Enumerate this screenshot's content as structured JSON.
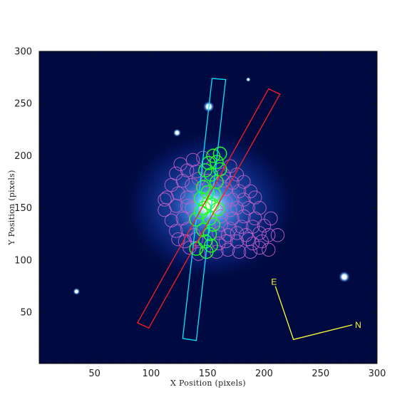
{
  "x_axis": {
    "title": "X Position (pixels)",
    "range": [
      1,
      300
    ],
    "ticks": [
      50,
      100,
      150,
      200,
      250,
      300
    ]
  },
  "y_axis": {
    "title": "Y Position (pixels)",
    "range": [
      1,
      300
    ],
    "ticks": [
      50,
      100,
      150,
      200,
      250,
      300
    ]
  },
  "colors": {
    "background": "#000a40",
    "galaxy_core": "#fffde0",
    "cyan_slit": "#00e8ff",
    "red_slit": "#ff1e1e",
    "green_apertures": "#22ff22",
    "magenta_apertures": "#c060c8",
    "compass": "#ffff33"
  },
  "compass": {
    "east_label": "E",
    "north_label": "N",
    "origin": [
      226,
      24
    ],
    "east_tip": [
      210,
      75
    ],
    "north_tip": [
      278,
      38
    ]
  },
  "slits": {
    "cyan": [
      [
        128,
        25
      ],
      [
        140,
        23
      ],
      [
        166,
        273
      ],
      [
        154,
        274
      ]
    ],
    "red": [
      [
        88,
        40
      ],
      [
        98,
        35
      ],
      [
        214,
        259
      ],
      [
        204,
        264
      ]
    ]
  },
  "stars": [
    {
      "x": 151,
      "y": 247,
      "size": 3.5
    },
    {
      "x": 123,
      "y": 222,
      "size": 2.5
    },
    {
      "x": 271,
      "y": 84,
      "size": 3.5
    },
    {
      "x": 34,
      "y": 70,
      "size": 2.2
    },
    {
      "x": 186,
      "y": 273,
      "size": 1.5
    }
  ],
  "galaxy": {
    "x": 152,
    "y": 152
  },
  "aperture_radius": 5.8,
  "green_apertures": [
    [
      161,
      202
    ],
    [
      155,
      200
    ],
    [
      158,
      194
    ],
    [
      151,
      193
    ],
    [
      148,
      186
    ],
    [
      161,
      187
    ],
    [
      153,
      182
    ],
    [
      158,
      175
    ],
    [
      146,
      170
    ],
    [
      150,
      165
    ],
    [
      156,
      163
    ],
    [
      144,
      159
    ],
    [
      151,
      155
    ],
    [
      154,
      153
    ],
    [
      147,
      150
    ],
    [
      159,
      149
    ],
    [
      144,
      146
    ],
    [
      152,
      140
    ],
    [
      140,
      139
    ],
    [
      155,
      134
    ],
    [
      146,
      129
    ],
    [
      152,
      125
    ],
    [
      148,
      118
    ],
    [
      153,
      114
    ],
    [
      140,
      111
    ],
    [
      149,
      108
    ]
  ],
  "magenta_apertures": [
    [
      137,
      196
    ],
    [
      146,
      198
    ],
    [
      126,
      192
    ],
    [
      132,
      186
    ],
    [
      140,
      185
    ],
    [
      122,
      183
    ],
    [
      170,
      190
    ],
    [
      176,
      182
    ],
    [
      164,
      182
    ],
    [
      182,
      175
    ],
    [
      172,
      174
    ],
    [
      188,
      166
    ],
    [
      178,
      166
    ],
    [
      128,
      176
    ],
    [
      118,
      172
    ],
    [
      136,
      172
    ],
    [
      124,
      164
    ],
    [
      114,
      160
    ],
    [
      132,
      160
    ],
    [
      166,
      168
    ],
    [
      172,
      158
    ],
    [
      182,
      158
    ],
    [
      192,
      160
    ],
    [
      196,
      150
    ],
    [
      186,
      150
    ],
    [
      176,
      150
    ],
    [
      166,
      156
    ],
    [
      162,
      142
    ],
    [
      172,
      140
    ],
    [
      182,
      142
    ],
    [
      192,
      140
    ],
    [
      200,
      133
    ],
    [
      190,
      132
    ],
    [
      180,
      132
    ],
    [
      170,
      130
    ],
    [
      160,
      126
    ],
    [
      122,
      152
    ],
    [
      112,
      148
    ],
    [
      118,
      138
    ],
    [
      128,
      140
    ],
    [
      132,
      130
    ],
    [
      122,
      128
    ],
    [
      138,
      124
    ],
    [
      130,
      118
    ],
    [
      140,
      120
    ],
    [
      166,
      118
    ],
    [
      176,
      118
    ],
    [
      186,
      120
    ],
    [
      196,
      126
    ],
    [
      204,
      124
    ],
    [
      212,
      124
    ],
    [
      206,
      140
    ],
    [
      178,
      108
    ],
    [
      188,
      108
    ],
    [
      168,
      110
    ],
    [
      158,
      108
    ],
    [
      196,
      112
    ],
    [
      112,
      158
    ],
    [
      136,
      150
    ],
    [
      170,
      148
    ],
    [
      184,
      124
    ],
    [
      198,
      118
    ],
    [
      124,
      120
    ],
    [
      162,
      134
    ],
    [
      176,
      126
    ],
    [
      134,
      112
    ],
    [
      142,
      106
    ],
    [
      160,
      116
    ],
    [
      190,
      116
    ],
    [
      204,
      110
    ],
    [
      150,
      176
    ],
    [
      164,
      176
    ],
    [
      142,
      178
    ],
    [
      132,
      152
    ],
    [
      168,
      124
    ]
  ]
}
